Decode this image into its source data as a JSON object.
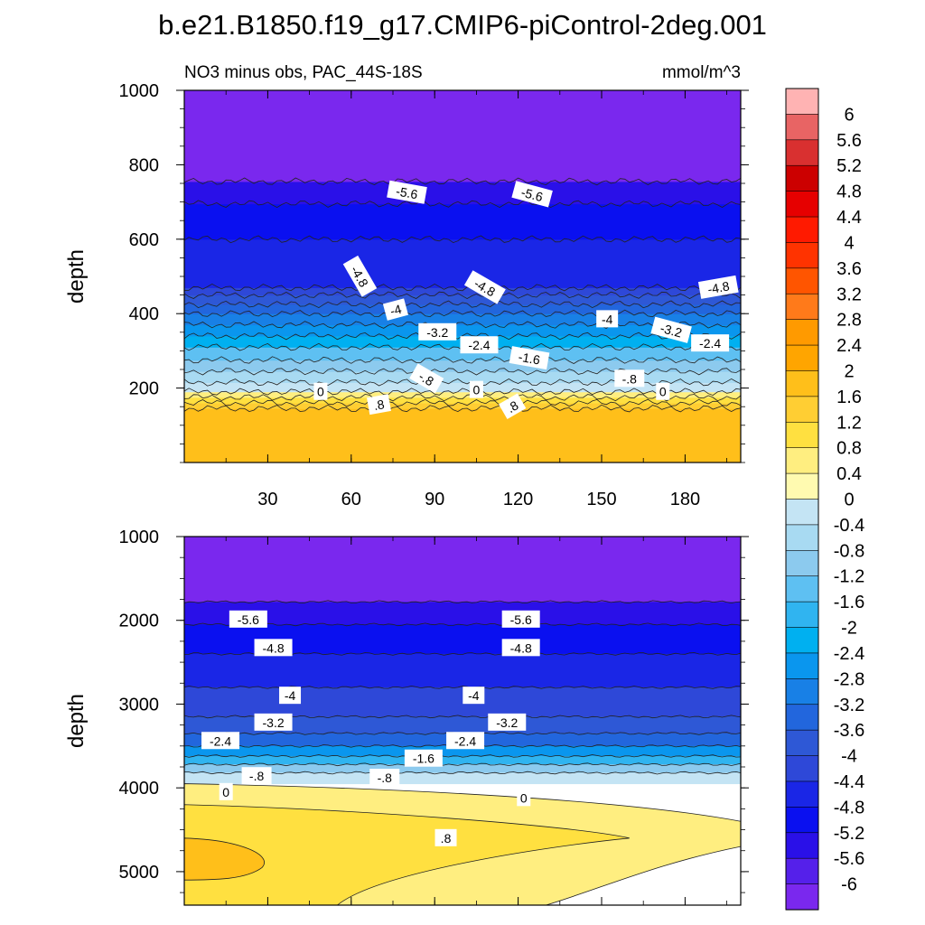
{
  "title": "b.e21.B1850.f19_g17.CMIP6-piControl-2deg.001",
  "subtitle_left": "NO3 minus obs, PAC_44S-18S",
  "subtitle_right": "mmol/m^3",
  "chart_data": [
    {
      "type": "contour",
      "name": "upper panel",
      "ylabel": "depth",
      "xlabel": "",
      "xlim": [
        0,
        200
      ],
      "ylim": [
        1000,
        0
      ],
      "xticks": [
        30,
        60,
        90,
        120,
        150,
        180
      ],
      "yticks": [
        200,
        400,
        600,
        800,
        1000
      ],
      "bands": [
        {
          "from": 0,
          "to": 145,
          "value": 1.6
        },
        {
          "from": 145,
          "to": 160,
          "value": 1.2
        },
        {
          "from": 160,
          "to": 175,
          "value": 0.8
        },
        {
          "from": 175,
          "to": 190,
          "value": 0.4
        },
        {
          "from": 190,
          "to": 215,
          "value": -0.4
        },
        {
          "from": 215,
          "to": 245,
          "value": -0.8
        },
        {
          "from": 245,
          "to": 275,
          "value": -1.2
        },
        {
          "from": 275,
          "to": 310,
          "value": -1.6
        },
        {
          "from": 310,
          "to": 340,
          "value": -2.4
        },
        {
          "from": 340,
          "to": 370,
          "value": -2.8
        },
        {
          "from": 370,
          "to": 400,
          "value": -3.2
        },
        {
          "from": 400,
          "to": 425,
          "value": -3.6
        },
        {
          "from": 425,
          "to": 450,
          "value": -4.0
        },
        {
          "from": 450,
          "to": 470,
          "value": -4.4
        },
        {
          "from": 470,
          "to": 600,
          "value": -4.8
        },
        {
          "from": 600,
          "to": 695,
          "value": -5.2
        },
        {
          "from": 695,
          "to": 755,
          "value": -5.6
        },
        {
          "from": 755,
          "to": 1000,
          "value": -6.0
        }
      ],
      "contour_labels": [
        {
          "text": ".8",
          "x": 70,
          "y": 155,
          "angle": -10
        },
        {
          "text": ".8",
          "x": 118,
          "y": 150,
          "angle": -30
        },
        {
          "text": "0",
          "x": 49,
          "y": 190,
          "angle": 0
        },
        {
          "text": "0",
          "x": 105,
          "y": 195,
          "angle": 0
        },
        {
          "text": "0",
          "x": 172,
          "y": 190,
          "angle": 0
        },
        {
          "text": "-.8",
          "x": 87,
          "y": 225,
          "angle": 30
        },
        {
          "text": "-.8",
          "x": 160,
          "y": 225,
          "angle": 0
        },
        {
          "text": "-1.6",
          "x": 124,
          "y": 280,
          "angle": 10
        },
        {
          "text": "-2.4",
          "x": 106,
          "y": 315,
          "angle": 0
        },
        {
          "text": "-2.4",
          "x": 189,
          "y": 320,
          "angle": 0
        },
        {
          "text": "-3.2",
          "x": 91,
          "y": 350,
          "angle": 0
        },
        {
          "text": "-3.2",
          "x": 175,
          "y": 355,
          "angle": 15
        },
        {
          "text": "-4",
          "x": 152,
          "y": 385,
          "angle": 0
        },
        {
          "text": "-4",
          "x": 76,
          "y": 410,
          "angle": -15
        },
        {
          "text": "-4.8",
          "x": 63,
          "y": 500,
          "angle": 60
        },
        {
          "text": "-4.8",
          "x": 108,
          "y": 470,
          "angle": 30
        },
        {
          "text": "-4.8",
          "x": 192,
          "y": 470,
          "angle": -10
        },
        {
          "text": "-5.6",
          "x": 80,
          "y": 725,
          "angle": 10
        },
        {
          "text": "-5.6",
          "x": 125,
          "y": 720,
          "angle": 15
        }
      ]
    },
    {
      "type": "contour",
      "name": "lower panel",
      "ylabel": "depth",
      "xlabel": "",
      "xlim": [
        0,
        200
      ],
      "ylim": [
        1000,
        5400
      ],
      "xticks": [
        30,
        60,
        90,
        120,
        150,
        180
      ],
      "yticks": [
        1000,
        2000,
        3000,
        4000,
        5000
      ],
      "bands": [
        {
          "from": 1000,
          "to": 1780,
          "value": -6.0
        },
        {
          "from": 1780,
          "to": 2050,
          "value": -5.6
        },
        {
          "from": 2050,
          "to": 2400,
          "value": -5.2
        },
        {
          "from": 2400,
          "to": 2800,
          "value": -4.8
        },
        {
          "from": 2800,
          "to": 3150,
          "value": -4.4
        },
        {
          "from": 3150,
          "to": 3350,
          "value": -4.0
        },
        {
          "from": 3350,
          "to": 3500,
          "value": -3.6
        },
        {
          "from": 3500,
          "to": 3620,
          "value": -2.8
        },
        {
          "from": 3620,
          "to": 3720,
          "value": -2.0
        },
        {
          "from": 3720,
          "to": 3820,
          "value": -1.2
        },
        {
          "from": 3820,
          "to": 3950,
          "value": -0.4
        }
      ],
      "contour_labels": [
        {
          "text": "-5.6",
          "x": 23,
          "y": 1990,
          "angle": 0
        },
        {
          "text": "-5.6",
          "x": 121,
          "y": 1990,
          "angle": 0
        },
        {
          "text": "-4.8",
          "x": 32,
          "y": 2330,
          "angle": 0
        },
        {
          "text": "-4.8",
          "x": 121,
          "y": 2330,
          "angle": 0
        },
        {
          "text": "-4",
          "x": 38,
          "y": 2900,
          "angle": 0
        },
        {
          "text": "-4",
          "x": 104,
          "y": 2900,
          "angle": 0
        },
        {
          "text": "-3.2",
          "x": 32,
          "y": 3220,
          "angle": 0
        },
        {
          "text": "-3.2",
          "x": 116,
          "y": 3220,
          "angle": 0
        },
        {
          "text": "-2.4",
          "x": 13,
          "y": 3440,
          "angle": 0
        },
        {
          "text": "-2.4",
          "x": 101,
          "y": 3440,
          "angle": 0
        },
        {
          "text": "-1.6",
          "x": 86,
          "y": 3650,
          "angle": 0
        },
        {
          "text": "-.8",
          "x": 26,
          "y": 3860,
          "angle": 0
        },
        {
          "text": "-.8",
          "x": 72,
          "y": 3880,
          "angle": 0
        },
        {
          "text": "0",
          "x": 15,
          "y": 4050,
          "angle": 0
        },
        {
          "text": "0",
          "x": 122,
          "y": 4120,
          "angle": 0
        },
        {
          "text": ".8",
          "x": 94,
          "y": 4600,
          "angle": 0
        }
      ]
    }
  ],
  "colorbar": {
    "labels": [
      "6",
      "5.6",
      "5.2",
      "4.8",
      "4.4",
      "4",
      "3.6",
      "3.2",
      "2.8",
      "2.4",
      "2",
      "1.6",
      "1.2",
      "0.8",
      "0.4",
      "0",
      "-0.4",
      "-0.8",
      "-1.2",
      "-1.6",
      "-2",
      "-2.4",
      "-2.8",
      "-3.2",
      "-3.6",
      "-4",
      "-4.4",
      "-4.8",
      "-5.2",
      "-5.6",
      "-6"
    ],
    "colors": [
      "#ffb3b3",
      "#e86464",
      "#d93030",
      "#cc0000",
      "#e60000",
      "#ff1a00",
      "#ff3300",
      "#ff5500",
      "#ff7a1a",
      "#ff9a00",
      "#ffa500",
      "#ffbf1a",
      "#ffce33",
      "#ffe040",
      "#ffee80",
      "#fffab0",
      "#c4e4f4",
      "#a8daf2",
      "#8ccaee",
      "#5ec0f2",
      "#30b4f0",
      "#00b0f0",
      "#0a96ee",
      "#1880e6",
      "#2266dd",
      "#2e58d6",
      "#2e48d8",
      "#1a26e6",
      "#0a10f0",
      "#2a10e8",
      "#5520ea",
      "#7a28ee"
    ]
  },
  "colors": {
    "band_scale": [
      {
        "v": 1.6,
        "c": "#ffbf1a"
      },
      {
        "v": 1.2,
        "c": "#ffce33"
      },
      {
        "v": 0.8,
        "c": "#ffe040"
      },
      {
        "v": 0.4,
        "c": "#ffee80"
      },
      {
        "v": -0.4,
        "c": "#c4e4f4"
      },
      {
        "v": -0.8,
        "c": "#a8daf2"
      },
      {
        "v": -1.2,
        "c": "#8ccaee"
      },
      {
        "v": -1.6,
        "c": "#5ec0f2"
      },
      {
        "v": -2.0,
        "c": "#30b4f0"
      },
      {
        "v": -2.4,
        "c": "#00b0f0"
      },
      {
        "v": -2.8,
        "c": "#0a96ee"
      },
      {
        "v": -3.2,
        "c": "#1880e6"
      },
      {
        "v": -3.6,
        "c": "#2266dd"
      },
      {
        "v": -4.0,
        "c": "#2e58d6"
      },
      {
        "v": -4.4,
        "c": "#2e48d8"
      },
      {
        "v": -4.8,
        "c": "#1a26e6"
      },
      {
        "v": -5.2,
        "c": "#0a10f0"
      },
      {
        "v": -5.6,
        "c": "#2a10e8"
      },
      {
        "v": -6.0,
        "c": "#7a28ee"
      }
    ]
  }
}
